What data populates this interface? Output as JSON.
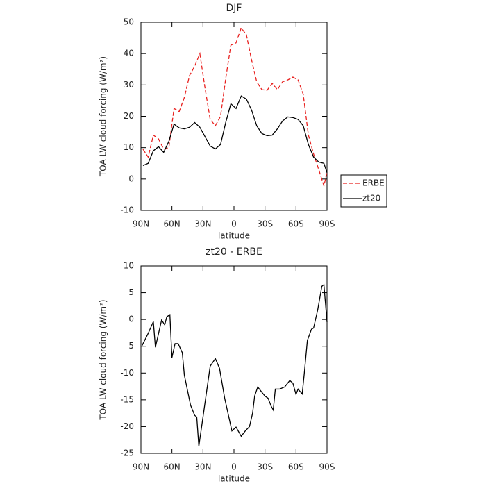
{
  "chart_data": [
    {
      "type": "line",
      "title": "DJF",
      "xlabel": "latitude",
      "ylabel": "TOA LW cloud forcing (W/m²)",
      "x": [
        88,
        83,
        78,
        73,
        68,
        63,
        58,
        53,
        48,
        43,
        38,
        33,
        28,
        23,
        18,
        13,
        8,
        3,
        -2,
        -7,
        -12,
        -17,
        -22,
        -27,
        -32,
        -37,
        -42,
        -47,
        -52,
        -57,
        -62,
        -67,
        -72,
        -77,
        -82,
        -87,
        -90
      ],
      "series": [
        {
          "name": "ERBE",
          "color": "#e8211f",
          "style": "dashed",
          "values": [
            9.5,
            7,
            14,
            12.8,
            9.5,
            10,
            22.5,
            21.5,
            26,
            33,
            36,
            40,
            29,
            19,
            17,
            20,
            32,
            42.7,
            43.4,
            48.2,
            46,
            38,
            31,
            28.5,
            28.3,
            30.5,
            28.5,
            31,
            31.6,
            32.5,
            31.6,
            27,
            14,
            8,
            3,
            -2.2,
            2.2
          ]
        },
        {
          "name": "zt20",
          "color": "#000000",
          "style": "solid",
          "values": [
            4.3,
            5,
            9,
            10.3,
            8.5,
            12,
            17.5,
            16.3,
            16,
            16.5,
            18,
            16.5,
            13.5,
            10.5,
            9.6,
            11,
            18,
            24,
            22.5,
            26.5,
            25.5,
            22,
            17,
            14.5,
            13.8,
            14,
            16,
            18.5,
            19.8,
            19.6,
            19,
            17,
            11,
            7,
            5.4,
            5,
            2
          ]
        }
      ],
      "xlim": [
        90,
        -90
      ],
      "xticks": [
        {
          "value": 90,
          "label": "90N"
        },
        {
          "value": 60,
          "label": "60N"
        },
        {
          "value": 30,
          "label": "30N"
        },
        0,
        {
          "value": -30,
          "label": "30S"
        },
        {
          "value": -60,
          "label": "60S"
        },
        {
          "value": -90,
          "label": "90S"
        }
      ],
      "ylim": [
        -10,
        50
      ],
      "yticks": [
        -10,
        0,
        10,
        20,
        30,
        40,
        50
      ],
      "legend": "right"
    },
    {
      "type": "line",
      "title": "zt20 - ERBE",
      "xlabel": "latitude",
      "ylabel": "TOA LW cloud forcing (W/m²)",
      "x": [
        89,
        83,
        78,
        76,
        70,
        67,
        65,
        62,
        60,
        57,
        54,
        50,
        48,
        42,
        38,
        36,
        34,
        29,
        23,
        18,
        14,
        9,
        2,
        -2,
        -7,
        -11,
        -15,
        -18,
        -20,
        -23,
        -27,
        -30,
        -33,
        -36,
        -38,
        -40,
        -44,
        -49,
        -54,
        -57,
        -60,
        -62,
        -66,
        -68,
        -71,
        -75,
        -77,
        -81,
        -85,
        -87,
        -90
      ],
      "values": [
        -4.9,
        -2.6,
        -0.4,
        -5.2,
        -0.1,
        -1,
        0.5,
        0.9,
        -7.1,
        -4.5,
        -4.5,
        -6.2,
        -10.4,
        -16,
        -17.9,
        -18.2,
        -23.7,
        -16.9,
        -8.7,
        -7.3,
        -9.1,
        -14.7,
        -20.8,
        -20.1,
        -21.8,
        -20.8,
        -20,
        -17.5,
        -14.3,
        -12.6,
        -13.6,
        -14.3,
        -14.7,
        -16.2,
        -16.9,
        -13,
        -13,
        -12.6,
        -11.4,
        -11.9,
        -14,
        -13,
        -13.9,
        -10.1,
        -3.9,
        -1.8,
        -1.6,
        1.8,
        6.2,
        6.5,
        -0.5
      ],
      "color": "#000000",
      "xlim": [
        90,
        -90
      ],
      "xticks": [
        {
          "value": 90,
          "label": "90N"
        },
        {
          "value": 60,
          "label": "60N"
        },
        {
          "value": 30,
          "label": "30N"
        },
        0,
        {
          "value": -30,
          "label": "30S"
        },
        {
          "value": -60,
          "label": "60S"
        },
        {
          "value": -90,
          "label": "90S"
        }
      ],
      "ylim": [
        -25,
        10
      ],
      "yticks": [
        -25,
        -20,
        -15,
        -10,
        -5,
        0,
        5,
        10
      ]
    }
  ]
}
